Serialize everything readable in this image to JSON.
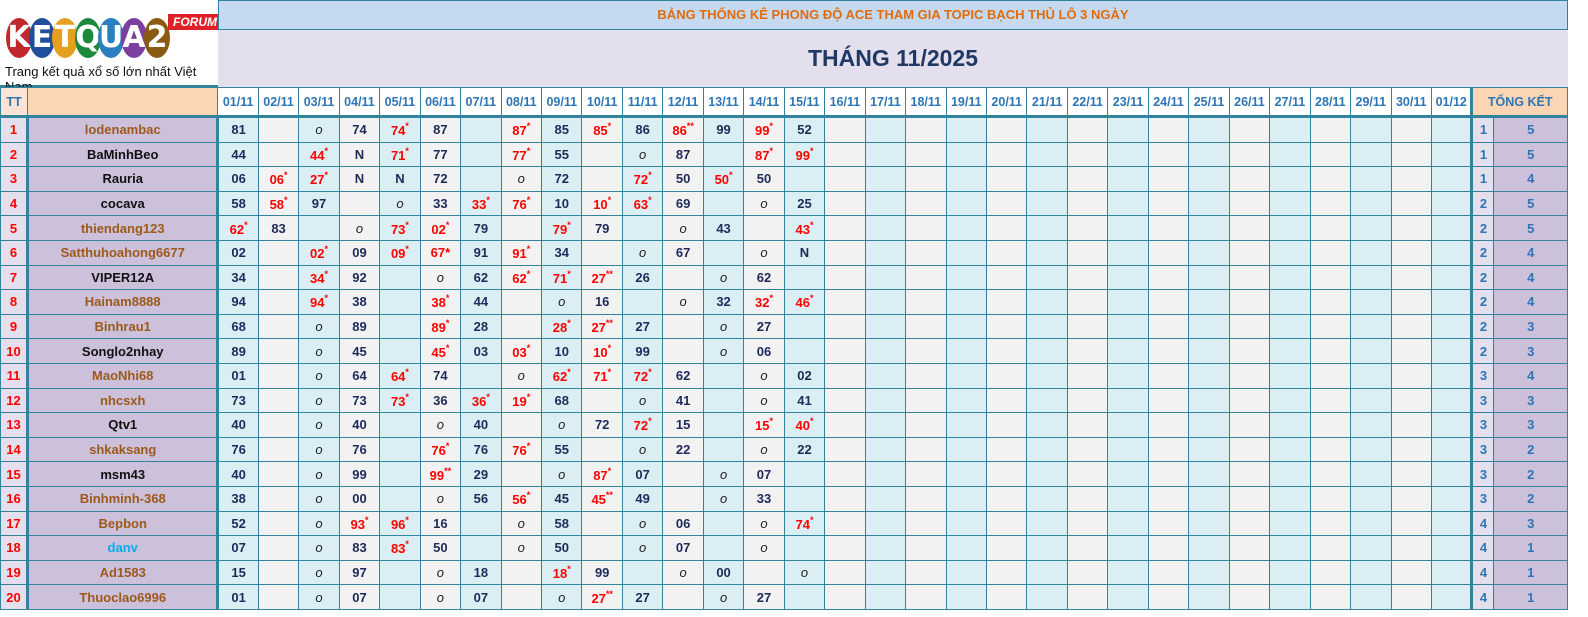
{
  "logo": {
    "text": "KETQUA2",
    "badge": "FORUM",
    "tagline": "Trang kết quả xổ số lớn nhất Việt Nam"
  },
  "banner": "BẢNG THỐNG KÊ PHONG ĐỘ ACE THAM GIA TOPIC BẠCH THỦ LÔ 3 NGÀY",
  "month": "THÁNG 11/2025",
  "headers": {
    "tt": "TT",
    "name": "",
    "summary": "TỔNG KẾT"
  },
  "dates": [
    "01/11",
    "02/11",
    "03/11",
    "04/11",
    "05/11",
    "06/11",
    "07/11",
    "08/11",
    "09/11",
    "10/11",
    "11/11",
    "12/11",
    "13/11",
    "14/11",
    "15/11",
    "16/11",
    "17/11",
    "18/11",
    "19/11",
    "20/11",
    "21/11",
    "22/11",
    "23/11",
    "24/11",
    "25/11",
    "26/11",
    "27/11",
    "28/11",
    "29/11",
    "30/11",
    "01/12"
  ],
  "colors": {
    "brown": "#9c5a1a",
    "black": "#111111",
    "cyan": "#00b0f0",
    "hit": "#ff0000"
  },
  "rows": [
    {
      "tt": "1",
      "name": "lodenambac",
      "color": "brown",
      "cells": [
        "81",
        "",
        "o",
        "74",
        "74^*",
        "87",
        "",
        "87^*",
        "85",
        "85^*",
        "86",
        "86^**",
        "99",
        "99^*",
        "52"
      ],
      "t1": "1",
      "t2": "5"
    },
    {
      "tt": "2",
      "name": "BaMinhBeo",
      "color": "black",
      "cells": [
        "44",
        "",
        "44^*",
        "N",
        "71^*",
        "77",
        "",
        "77^*",
        "55",
        "",
        "o",
        "87",
        "",
        "87^*",
        "99^*"
      ],
      "t1": "1",
      "t2": "5"
    },
    {
      "tt": "3",
      "name": "Rauria",
      "color": "black",
      "cells": [
        "06",
        "06^*",
        "27^*",
        "N",
        "N",
        "72",
        "",
        "o",
        "72",
        "",
        "72^*",
        "50",
        "50^*",
        "50",
        ""
      ],
      "t1": "1",
      "t2": "4"
    },
    {
      "tt": "4",
      "name": "cocava",
      "color": "black",
      "cells": [
        "58",
        "58^*",
        "97",
        "",
        "o",
        "33",
        "33^*",
        "76^*",
        "10",
        "10^*",
        "63^*",
        "69",
        "",
        "o",
        "25"
      ],
      "t1": "2",
      "t2": "5"
    },
    {
      "tt": "5",
      "name": "thiendang123",
      "color": "brown",
      "cells": [
        "62^*",
        "83",
        "",
        "o",
        "73^*",
        "02^*",
        "79",
        "",
        "79^*",
        "79",
        "",
        "o",
        "43",
        "",
        "43^*"
      ],
      "t1": "2",
      "t2": "5"
    },
    {
      "tt": "6",
      "name": "Satthuhoahong6677",
      "color": "brown",
      "cells": [
        "02",
        "",
        "02^*",
        "09",
        "09^*",
        "67*",
        "91",
        "91^*",
        "34",
        "",
        "o",
        "67",
        "",
        "o",
        "N"
      ],
      "t1": "2",
      "t2": "4"
    },
    {
      "tt": "7",
      "name": "VIPER12A",
      "color": "black",
      "cells": [
        "34",
        "",
        "34^*",
        "92",
        "",
        "o",
        "62",
        "62^*",
        "71^*",
        "27^**",
        "26",
        "",
        "o",
        "62",
        ""
      ],
      "t1": "2",
      "t2": "4"
    },
    {
      "tt": "8",
      "name": "Hainam8888",
      "color": "brown",
      "cells": [
        "94",
        "",
        "94^*",
        "38",
        "",
        "38^*",
        "44",
        "",
        "o",
        "16",
        "",
        "o",
        "32",
        "32^*",
        "46^*"
      ],
      "t1": "2",
      "t2": "4"
    },
    {
      "tt": "9",
      "name": "Binhrau1",
      "color": "brown",
      "cells": [
        "68",
        "",
        "o",
        "89",
        "",
        "89^*",
        "28",
        "",
        "28^*",
        "27^**",
        "27",
        "",
        "o",
        "27",
        ""
      ],
      "t1": "2",
      "t2": "3"
    },
    {
      "tt": "10",
      "name": "Songlo2nhay",
      "color": "black",
      "cells": [
        "89",
        "",
        "o",
        "45",
        "",
        "45^*",
        "03",
        "03^*",
        "10",
        "10^*",
        "99",
        "",
        "o",
        "06",
        ""
      ],
      "t1": "2",
      "t2": "3"
    },
    {
      "tt": "11",
      "name": "MaoNhi68",
      "color": "brown",
      "cells": [
        "01",
        "",
        "o",
        "64",
        "64^*",
        "74",
        "",
        "o",
        "62^*",
        "71^*",
        "72^*",
        "62",
        "",
        "o",
        "02"
      ],
      "t1": "3",
      "t2": "4"
    },
    {
      "tt": "12",
      "name": "nhcsxh",
      "color": "brown",
      "cells": [
        "73",
        "",
        "o",
        "73",
        "73^*",
        "36",
        "36^*",
        "19^*",
        "68",
        "",
        "o",
        "41",
        "",
        "o",
        "41"
      ],
      "t1": "3",
      "t2": "3"
    },
    {
      "tt": "13",
      "name": "Qtv1",
      "color": "black",
      "cells": [
        "40",
        "",
        "o",
        "40",
        "",
        "o",
        "40",
        "",
        "o",
        "72",
        "72^*",
        "15",
        "",
        "15^*",
        "40^*"
      ],
      "t1": "3",
      "t2": "3"
    },
    {
      "tt": "14",
      "name": "shkaksang",
      "color": "brown",
      "cells": [
        "76",
        "",
        "o",
        "76",
        "",
        "76^*",
        "76",
        "76^*",
        "55",
        "",
        "o",
        "22",
        "",
        "o",
        "22"
      ],
      "t1": "3",
      "t2": "2"
    },
    {
      "tt": "15",
      "name": "msm43",
      "color": "black",
      "cells": [
        "40",
        "",
        "o",
        "99",
        "",
        "99^**",
        "29",
        "",
        "o",
        "87^*",
        "07",
        "",
        "o",
        "07",
        ""
      ],
      "t1": "3",
      "t2": "2"
    },
    {
      "tt": "16",
      "name": "Binhminh-368",
      "color": "brown",
      "cells": [
        "38",
        "",
        "o",
        "00",
        "",
        "o",
        "56",
        "56^*",
        "45",
        "45^**",
        "49",
        "",
        "o",
        "33",
        ""
      ],
      "t1": "3",
      "t2": "2"
    },
    {
      "tt": "17",
      "name": "Bepbon",
      "color": "brown",
      "cells": [
        "52",
        "",
        "o",
        "93^*",
        "96^*",
        "16",
        "",
        "o",
        "58",
        "",
        "o",
        "06",
        "",
        "o",
        "74^*"
      ],
      "t1": "4",
      "t2": "3"
    },
    {
      "tt": "18",
      "name": "danv",
      "color": "cyan",
      "cells": [
        "07",
        "",
        "o",
        "83",
        "83^*",
        "50",
        "",
        "o",
        "50",
        "",
        "o",
        "07",
        "",
        "o",
        ""
      ],
      "t1": "4",
      "t2": "1"
    },
    {
      "tt": "19",
      "name": "Ad1583",
      "color": "brown",
      "cells": [
        "15",
        "",
        "o",
        "97",
        "",
        "o",
        "18",
        "",
        "18^*",
        "99",
        "",
        "o",
        "00",
        "",
        "o"
      ],
      "t1": "4",
      "t2": "1"
    },
    {
      "tt": "20",
      "name": "Thuoclao6996",
      "color": "brown",
      "cells": [
        "01",
        "",
        "o",
        "07",
        "",
        "o",
        "07",
        "",
        "o",
        "27^**",
        "27",
        "",
        "o",
        "27",
        ""
      ],
      "t1": "4",
      "t2": "1"
    }
  ]
}
